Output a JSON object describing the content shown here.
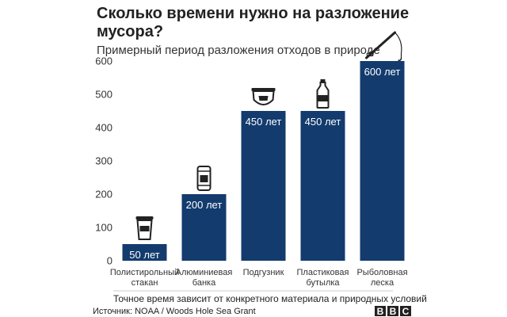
{
  "chart_data": {
    "type": "bar",
    "title_lines": [
      "Сколько времени нужно на разложение",
      "мусора?"
    ],
    "subtitle": "Примерный период разложения отходов в природе",
    "categories": [
      [
        "Полистирольный",
        "стакан"
      ],
      [
        "Алюминиевая",
        "банка"
      ],
      [
        "Подгузник"
      ],
      [
        "Пластиковая",
        "бутылка"
      ],
      [
        "Рыболовная",
        "леска"
      ]
    ],
    "values": [
      50,
      200,
      450,
      450,
      600
    ],
    "value_labels": [
      "50 лет",
      "200 лет",
      "450 лет",
      "450 лет",
      "600 лет"
    ],
    "icons": [
      "cup-icon",
      "can-icon",
      "diaper-icon",
      "bottle-icon",
      "fishing-line-icon"
    ],
    "yticks": [
      0,
      100,
      200,
      300,
      400,
      500,
      600
    ],
    "ylim": [
      0,
      600
    ],
    "bar_color": "#133b6e",
    "grid": false
  },
  "footer": {
    "note": "Точное время зависит от конкретного материала и природных условий",
    "source": "Источник: NOAA / Woods Hole Sea Grant",
    "logo_letters": [
      "B",
      "B",
      "C"
    ]
  }
}
